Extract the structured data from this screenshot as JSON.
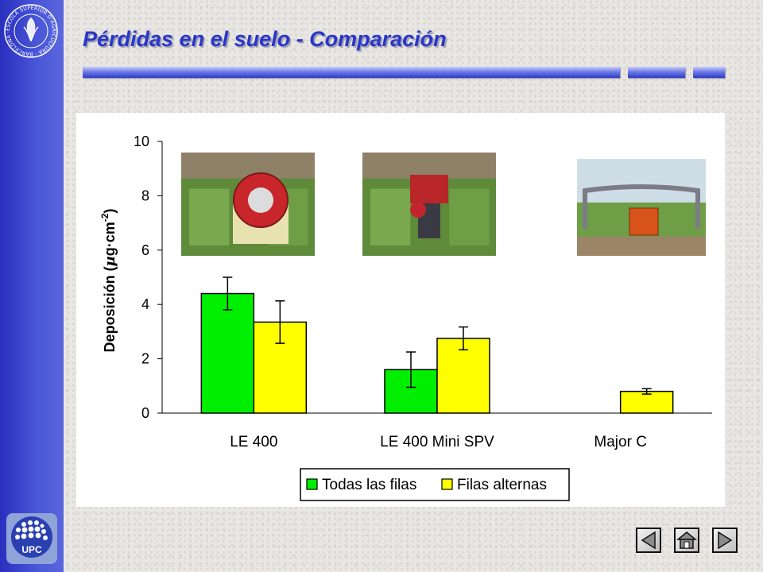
{
  "slide": {
    "title": "Pérdidas en el suelo - Comparación"
  },
  "logos": {
    "seal_icon": "school-seal-icon",
    "seal_text": "ESCOLA SUPERIOR D'AGRICULTURA · BARCELONA · MCMXII",
    "upc_icon": "upc-logo-icon",
    "upc_text": "UPC"
  },
  "navigation": {
    "prev_icon": "triangle-left-icon",
    "home_icon": "home-icon",
    "next_icon": "triangle-right-icon"
  },
  "colors": {
    "series_all_rows": "#00ee00",
    "series_alternate_rows": "#ffff00",
    "title": "#2a36c8",
    "left_bar": "#3a46d0"
  },
  "chart_data": {
    "type": "bar",
    "categories": [
      "LE 400",
      "LE 400 Mini SPV",
      "Major C"
    ],
    "series": [
      {
        "name": "Todas las filas",
        "color": "#00ee00",
        "values": [
          4.4,
          1.6,
          null
        ],
        "error": [
          0.6,
          0.65,
          null
        ]
      },
      {
        "name": "Filas alternas",
        "color": "#ffff00",
        "values": [
          3.35,
          2.75,
          0.8
        ],
        "error": [
          0.78,
          0.42,
          0.1
        ]
      }
    ],
    "ylabel": "Deposición (µg·cm-2)",
    "ylabel_main": "Deposición (",
    "ylabel_mu": "µ",
    "ylabel_unit": "g·cm",
    "ylabel_exp": "-2",
    "ylabel_close": ")",
    "ylim": [
      0,
      10
    ],
    "yticks": [
      "0",
      "2",
      "4",
      "6",
      "8",
      "10"
    ],
    "grid": false,
    "legend_position": "bottom-center",
    "photos": [
      "sprayer-le400-photo",
      "sprayer-le400-mini-spv-photo",
      "sprayer-major-c-photo"
    ]
  }
}
